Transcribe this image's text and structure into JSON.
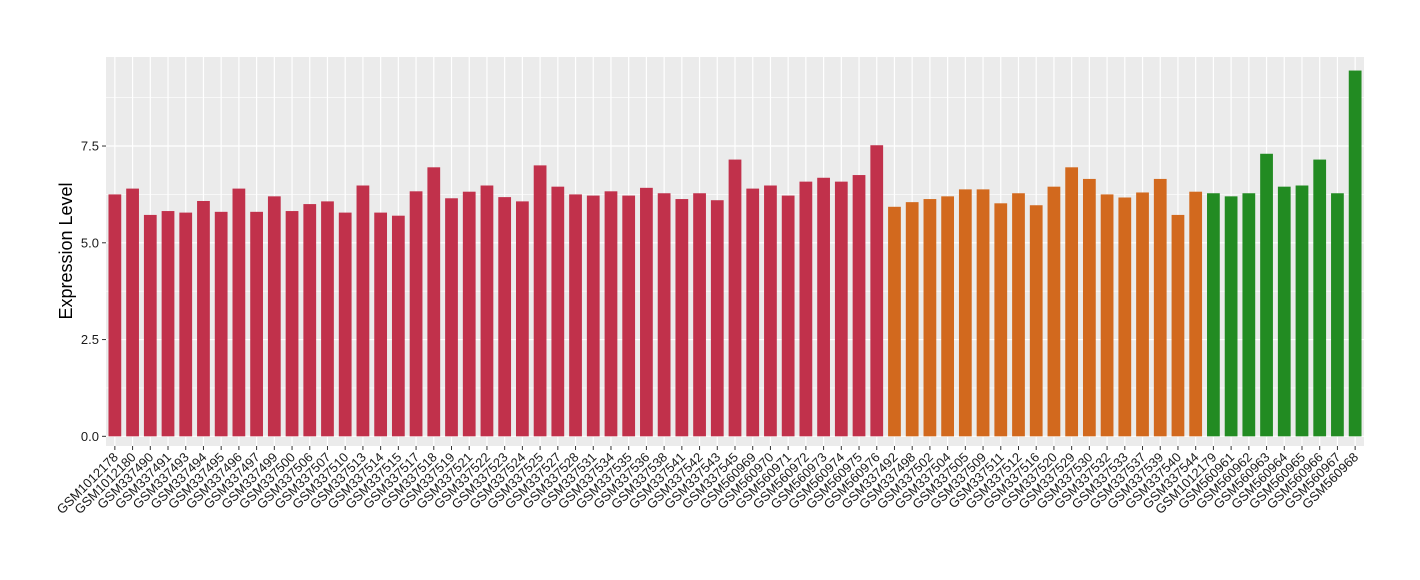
{
  "chart_data": {
    "type": "bar",
    "title": "",
    "xlabel": "",
    "ylabel": "Expression Level",
    "ylim": [
      -0.25,
      9.8
    ],
    "yticks": [
      0.0,
      2.5,
      5.0,
      7.5
    ],
    "ytick_labels": [
      "0.0",
      "2.5",
      "5.0",
      "7.5"
    ],
    "grid": true,
    "legend": "none",
    "group_colors": {
      "red": "#C1314B",
      "orange": "#D2691E",
      "green": "#228B22"
    },
    "background_color": "#EBEBEB",
    "gridline_color": "#FFFFFF",
    "categories": [
      "GSM1012178",
      "GSM1012180",
      "GSM337490",
      "GSM337491",
      "GSM337493",
      "GSM337494",
      "GSM337495",
      "GSM337496",
      "GSM337497",
      "GSM337499",
      "GSM337500",
      "GSM337506",
      "GSM337507",
      "GSM337510",
      "GSM337513",
      "GSM337514",
      "GSM337515",
      "GSM337517",
      "GSM337518",
      "GSM337519",
      "GSM337521",
      "GSM337522",
      "GSM337523",
      "GSM337524",
      "GSM337525",
      "GSM337527",
      "GSM337528",
      "GSM337531",
      "GSM337534",
      "GSM337535",
      "GSM337536",
      "GSM337538",
      "GSM337541",
      "GSM337542",
      "GSM337543",
      "GSM337545",
      "GSM560969",
      "GSM560970",
      "GSM560971",
      "GSM560972",
      "GSM560973",
      "GSM560974",
      "GSM560975",
      "GSM560976",
      "GSM337492",
      "GSM337498",
      "GSM337502",
      "GSM337504",
      "GSM337505",
      "GSM337509",
      "GSM337511",
      "GSM337512",
      "GSM337516",
      "GSM337520",
      "GSM337529",
      "GSM337530",
      "GSM337532",
      "GSM337533",
      "GSM337537",
      "GSM337539",
      "GSM337540",
      "GSM337544",
      "GSM1012179",
      "GSM560961",
      "GSM560962",
      "GSM560963",
      "GSM560964",
      "GSM560965",
      "GSM560966",
      "GSM560967",
      "GSM560968"
    ],
    "values": [
      6.25,
      6.4,
      5.72,
      5.82,
      5.78,
      6.08,
      5.8,
      6.4,
      5.8,
      6.2,
      5.82,
      6.0,
      6.07,
      5.78,
      6.48,
      5.78,
      5.7,
      6.33,
      6.95,
      6.15,
      6.32,
      6.48,
      6.18,
      6.07,
      7.0,
      6.45,
      6.25,
      6.22,
      6.33,
      6.22,
      6.42,
      6.28,
      6.13,
      6.28,
      6.1,
      7.15,
      6.4,
      6.48,
      6.22,
      6.58,
      6.68,
      6.58,
      6.75,
      7.52,
      5.93,
      6.05,
      6.13,
      6.2,
      6.38,
      6.38,
      6.02,
      6.28,
      5.97,
      6.45,
      6.95,
      6.65,
      6.25,
      6.17,
      6.3,
      6.65,
      5.72,
      6.32,
      6.28,
      6.2,
      6.28,
      7.3,
      6.45,
      6.48,
      7.15,
      6.28,
      9.45
    ],
    "groups": [
      "red",
      "red",
      "red",
      "red",
      "red",
      "red",
      "red",
      "red",
      "red",
      "red",
      "red",
      "red",
      "red",
      "red",
      "red",
      "red",
      "red",
      "red",
      "red",
      "red",
      "red",
      "red",
      "red",
      "red",
      "red",
      "red",
      "red",
      "red",
      "red",
      "red",
      "red",
      "red",
      "red",
      "red",
      "red",
      "red",
      "red",
      "red",
      "red",
      "red",
      "red",
      "red",
      "red",
      "red",
      "orange",
      "orange",
      "orange",
      "orange",
      "orange",
      "orange",
      "orange",
      "orange",
      "orange",
      "orange",
      "orange",
      "orange",
      "orange",
      "orange",
      "orange",
      "orange",
      "orange",
      "orange",
      "green",
      "green",
      "green",
      "green",
      "green",
      "green",
      "green",
      "green",
      "green"
    ]
  }
}
